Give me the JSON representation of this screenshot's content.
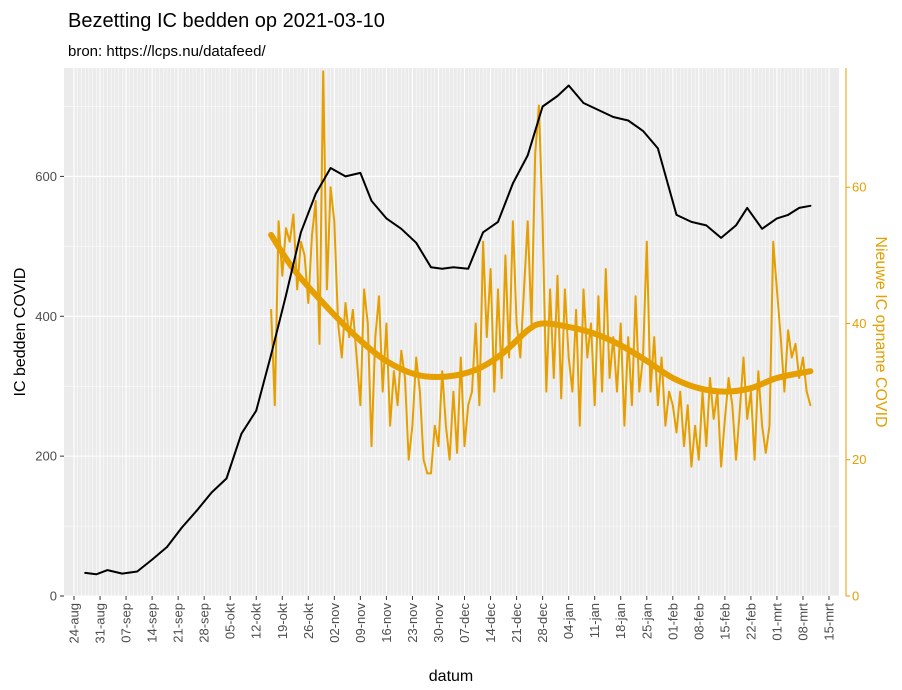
{
  "chart_data": {
    "type": "line",
    "title": "Bezetting IC bedden op 2021-03-10",
    "subtitle": "bron: https://lcps.nu/datafeed/",
    "xlabel": "datum",
    "ylabel_left": "IC bedden COVID",
    "ylabel_right": "Nieuwe IC opname COVID",
    "x_start": "2020-08-24",
    "x_end": "2021-03-15",
    "ylim_left": [
      0,
      755
    ],
    "ylim_right": [
      0,
      77.5
    ],
    "yticks_left": [
      "0",
      "200",
      "400",
      "600"
    ],
    "yticks_right": [
      "0",
      "20",
      "40",
      "60"
    ],
    "xticks": [
      "24-aug",
      "31-aug",
      "07-sep",
      "14-sep",
      "21-sep",
      "28-sep",
      "05-okt",
      "12-okt",
      "19-okt",
      "26-okt",
      "02-nov",
      "09-nov",
      "16-nov",
      "23-nov",
      "30-nov",
      "07-dec",
      "14-dec",
      "21-dec",
      "28-dec",
      "04-jan",
      "11-jan",
      "18-jan",
      "25-jan",
      "01-feb",
      "08-feb",
      "15-feb",
      "22-feb",
      "01-mrt",
      "08-mrt",
      "15-mrt"
    ],
    "grid": true,
    "colors": {
      "beds": "#000000",
      "admissions": "#e69f00",
      "panel": "#ebebeb",
      "grid": "#ffffff"
    },
    "series": [
      {
        "name": "",
        "axis": "left",
        "color": "#000000",
        "points": [
          [
            "2020-08-27",
            33
          ],
          [
            "2020-08-30",
            31
          ],
          [
            "2020-09-02",
            37
          ],
          [
            "2020-09-06",
            32
          ],
          [
            "2020-09-10",
            35
          ],
          [
            "2020-09-14",
            52
          ],
          [
            "2020-09-18",
            70
          ],
          [
            "2020-09-22",
            98
          ],
          [
            "2020-09-26",
            122
          ],
          [
            "2020-09-30",
            148
          ],
          [
            "2020-10-04",
            168
          ],
          [
            "2020-10-08",
            232
          ],
          [
            "2020-10-12",
            265
          ],
          [
            "2020-10-16",
            345
          ],
          [
            "2020-10-20",
            430
          ],
          [
            "2020-10-24",
            520
          ],
          [
            "2020-10-28",
            575
          ],
          [
            "2020-11-01",
            612
          ],
          [
            "2020-11-05",
            600
          ],
          [
            "2020-11-09",
            605
          ],
          [
            "2020-11-12",
            565
          ],
          [
            "2020-11-16",
            540
          ],
          [
            "2020-11-20",
            525
          ],
          [
            "2020-11-24",
            505
          ],
          [
            "2020-11-28",
            470
          ],
          [
            "2020-12-01",
            468
          ],
          [
            "2020-12-04",
            470
          ],
          [
            "2020-12-08",
            468
          ],
          [
            "2020-12-12",
            520
          ],
          [
            "2020-12-16",
            535
          ],
          [
            "2020-12-20",
            590
          ],
          [
            "2020-12-24",
            630
          ],
          [
            "2020-12-28",
            700
          ],
          [
            "2021-01-01",
            715
          ],
          [
            "2021-01-04",
            730
          ],
          [
            "2021-01-08",
            705
          ],
          [
            "2021-01-12",
            695
          ],
          [
            "2021-01-16",
            685
          ],
          [
            "2021-01-20",
            680
          ],
          [
            "2021-01-24",
            665
          ],
          [
            "2021-01-28",
            640
          ],
          [
            "2021-02-02",
            545
          ],
          [
            "2021-02-06",
            535
          ],
          [
            "2021-02-10",
            530
          ],
          [
            "2021-02-14",
            512
          ],
          [
            "2021-02-18",
            530
          ],
          [
            "2021-02-21",
            555
          ],
          [
            "2021-02-25",
            525
          ],
          [
            "2021-03-01",
            540
          ],
          [
            "2021-03-04",
            545
          ],
          [
            "2021-03-07",
            555
          ],
          [
            "2021-03-10",
            558
          ]
        ]
      },
      {
        "name": "",
        "axis": "right",
        "color": "#e69f00",
        "points": [
          [
            "2020-10-16",
            42
          ],
          [
            "2020-10-17",
            28
          ],
          [
            "2020-10-18",
            55
          ],
          [
            "2020-10-19",
            47
          ],
          [
            "2020-10-20",
            54
          ],
          [
            "2020-10-21",
            52
          ],
          [
            "2020-10-22",
            56
          ],
          [
            "2020-10-23",
            45
          ],
          [
            "2020-10-24",
            52
          ],
          [
            "2020-10-25",
            50
          ],
          [
            "2020-10-26",
            43
          ],
          [
            "2020-10-27",
            53
          ],
          [
            "2020-10-28",
            58
          ],
          [
            "2020-10-29",
            37
          ],
          [
            "2020-10-30",
            77
          ],
          [
            "2020-10-31",
            45
          ],
          [
            "2020-11-01",
            60
          ],
          [
            "2020-11-02",
            55
          ],
          [
            "2020-11-03",
            40
          ],
          [
            "2020-11-04",
            35
          ],
          [
            "2020-11-05",
            43
          ],
          [
            "2020-11-06",
            38
          ],
          [
            "2020-11-07",
            42
          ],
          [
            "2020-11-08",
            35
          ],
          [
            "2020-11-09",
            28
          ],
          [
            "2020-11-10",
            45
          ],
          [
            "2020-11-11",
            40
          ],
          [
            "2020-11-12",
            22
          ],
          [
            "2020-11-13",
            38
          ],
          [
            "2020-11-14",
            44
          ],
          [
            "2020-11-15",
            30
          ],
          [
            "2020-11-16",
            40
          ],
          [
            "2020-11-17",
            25
          ],
          [
            "2020-11-18",
            33
          ],
          [
            "2020-11-19",
            28
          ],
          [
            "2020-11-20",
            36
          ],
          [
            "2020-11-21",
            32
          ],
          [
            "2020-11-22",
            20
          ],
          [
            "2020-11-23",
            25
          ],
          [
            "2020-11-24",
            35
          ],
          [
            "2020-11-25",
            30
          ],
          [
            "2020-11-26",
            20
          ],
          [
            "2020-11-27",
            18
          ],
          [
            "2020-11-28",
            18
          ],
          [
            "2020-11-29",
            25
          ],
          [
            "2020-11-30",
            22
          ],
          [
            "2020-12-01",
            33
          ],
          [
            "2020-12-02",
            25
          ],
          [
            "2020-12-03",
            20
          ],
          [
            "2020-12-04",
            30
          ],
          [
            "2020-12-05",
            21
          ],
          [
            "2020-12-06",
            35
          ],
          [
            "2020-12-07",
            22
          ],
          [
            "2020-12-08",
            28
          ],
          [
            "2020-12-09",
            30
          ],
          [
            "2020-12-10",
            40
          ],
          [
            "2020-12-11",
            28
          ],
          [
            "2020-12-12",
            52
          ],
          [
            "2020-12-13",
            38
          ],
          [
            "2020-12-14",
            48
          ],
          [
            "2020-12-15",
            30
          ],
          [
            "2020-12-16",
            45
          ],
          [
            "2020-12-17",
            32
          ],
          [
            "2020-12-18",
            50
          ],
          [
            "2020-12-19",
            35
          ],
          [
            "2020-12-20",
            55
          ],
          [
            "2020-12-21",
            40
          ],
          [
            "2020-12-22",
            35
          ],
          [
            "2020-12-23",
            45
          ],
          [
            "2020-12-24",
            55
          ],
          [
            "2020-12-25",
            40
          ],
          [
            "2020-12-26",
            65
          ],
          [
            "2020-12-27",
            72
          ],
          [
            "2020-12-28",
            55
          ],
          [
            "2020-12-29",
            30
          ],
          [
            "2020-12-30",
            45
          ],
          [
            "2020-12-31",
            32
          ],
          [
            "2021-01-01",
            47
          ],
          [
            "2021-01-02",
            29
          ],
          [
            "2021-01-03",
            45
          ],
          [
            "2021-01-04",
            35
          ],
          [
            "2021-01-05",
            30
          ],
          [
            "2021-01-06",
            42
          ],
          [
            "2021-01-07",
            25
          ],
          [
            "2021-01-08",
            45
          ],
          [
            "2021-01-09",
            35
          ],
          [
            "2021-01-10",
            40
          ],
          [
            "2021-01-11",
            28
          ],
          [
            "2021-01-12",
            44
          ],
          [
            "2021-01-13",
            30
          ],
          [
            "2021-01-14",
            48
          ],
          [
            "2021-01-15",
            32
          ],
          [
            "2021-01-16",
            38
          ],
          [
            "2021-01-17",
            30
          ],
          [
            "2021-01-18",
            40
          ],
          [
            "2021-01-19",
            25
          ],
          [
            "2021-01-20",
            38
          ],
          [
            "2021-01-21",
            28
          ],
          [
            "2021-01-22",
            44
          ],
          [
            "2021-01-23",
            30
          ],
          [
            "2021-01-24",
            35
          ],
          [
            "2021-01-25",
            52
          ],
          [
            "2021-01-26",
            30
          ],
          [
            "2021-01-27",
            38
          ],
          [
            "2021-01-28",
            28
          ],
          [
            "2021-01-29",
            35
          ],
          [
            "2021-01-30",
            25
          ],
          [
            "2021-01-31",
            30
          ],
          [
            "2021-02-01",
            28
          ],
          [
            "2021-02-02",
            24
          ],
          [
            "2021-02-03",
            30
          ],
          [
            "2021-02-04",
            22
          ],
          [
            "2021-02-05",
            28
          ],
          [
            "2021-02-06",
            19
          ],
          [
            "2021-02-07",
            25
          ],
          [
            "2021-02-08",
            20
          ],
          [
            "2021-02-09",
            30
          ],
          [
            "2021-02-10",
            22
          ],
          [
            "2021-02-11",
            32
          ],
          [
            "2021-02-12",
            26
          ],
          [
            "2021-02-13",
            30
          ],
          [
            "2021-02-14",
            19
          ],
          [
            "2021-02-15",
            26
          ],
          [
            "2021-02-16",
            32
          ],
          [
            "2021-02-17",
            28
          ],
          [
            "2021-02-18",
            20
          ],
          [
            "2021-02-19",
            27
          ],
          [
            "2021-02-20",
            35
          ],
          [
            "2021-02-21",
            26
          ],
          [
            "2021-02-22",
            30
          ],
          [
            "2021-02-23",
            20
          ],
          [
            "2021-02-24",
            33
          ],
          [
            "2021-02-25",
            25
          ],
          [
            "2021-02-26",
            21
          ],
          [
            "2021-02-27",
            25
          ],
          [
            "2021-02-28",
            52
          ],
          [
            "2021-03-01",
            45
          ],
          [
            "2021-03-02",
            38
          ],
          [
            "2021-03-03",
            30
          ],
          [
            "2021-03-04",
            39
          ],
          [
            "2021-03-05",
            35
          ],
          [
            "2021-03-06",
            37
          ],
          [
            "2021-03-07",
            32
          ],
          [
            "2021-03-08",
            35
          ],
          [
            "2021-03-09",
            30
          ],
          [
            "2021-03-10",
            28
          ]
        ]
      },
      {
        "name": "",
        "axis": "right",
        "color": "#e69f00",
        "smooth": true,
        "points": [
          [
            "2020-10-16",
            53
          ],
          [
            "2020-10-22",
            48
          ],
          [
            "2020-10-30",
            43
          ],
          [
            "2020-11-08",
            38
          ],
          [
            "2020-11-16",
            34.5
          ],
          [
            "2020-11-24",
            32.5
          ],
          [
            "2020-12-02",
            32.2
          ],
          [
            "2020-12-10",
            33.2
          ],
          [
            "2020-12-17",
            35.5
          ],
          [
            "2020-12-24",
            39
          ],
          [
            "2020-12-28",
            40
          ],
          [
            "2021-01-04",
            39.5
          ],
          [
            "2021-01-11",
            38.5
          ],
          [
            "2021-01-18",
            36.8
          ],
          [
            "2021-01-25",
            34.5
          ],
          [
            "2021-02-01",
            32
          ],
          [
            "2021-02-08",
            30.5
          ],
          [
            "2021-02-15",
            30
          ],
          [
            "2021-02-22",
            30.5
          ],
          [
            "2021-03-01",
            32
          ],
          [
            "2021-03-10",
            33
          ]
        ]
      }
    ]
  }
}
